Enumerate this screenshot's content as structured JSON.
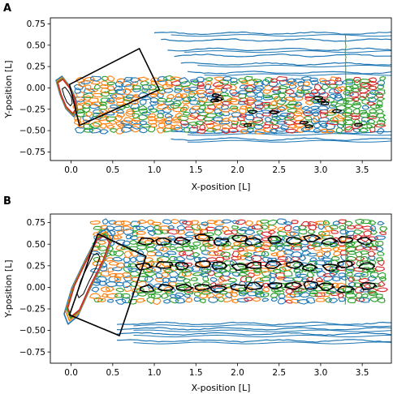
{
  "chart_data": [
    {
      "type": "contour",
      "panel_label": "A",
      "xlabel": "X-position [L]",
      "ylabel": "Y-position [L]",
      "xlim": [
        -0.25,
        3.85
      ],
      "ylim": [
        -0.85,
        0.82
      ],
      "xticks": [
        0.0,
        0.5,
        1.0,
        1.5,
        2.0,
        2.5,
        3.0,
        3.5
      ],
      "yticks": [
        -0.75,
        -0.5,
        -0.25,
        0.0,
        0.25,
        0.5,
        0.75
      ],
      "xtick_labels": [
        "0.0",
        "0.5",
        "1.0",
        "1.5",
        "2.0",
        "2.5",
        "3.0",
        "3.5"
      ],
      "ytick_labels": [
        "−0.75",
        "−0.50",
        "−0.25",
        "0.00",
        "0.25",
        "0.50",
        "0.75"
      ],
      "colors": [
        "#1f77b4",
        "#ff7f0e",
        "#2ca02c",
        "#d62728",
        "#000000"
      ],
      "body_outline": [
        [
          -0.16,
          0.06
        ],
        [
          -0.1,
          0.1
        ],
        [
          -0.02,
          0.0
        ],
        [
          0.04,
          -0.12
        ],
        [
          0.06,
          -0.24
        ],
        [
          0.02,
          -0.3
        ],
        [
          -0.06,
          -0.22
        ],
        [
          -0.12,
          -0.08
        ]
      ],
      "inset_box": [
        [
          -0.02,
          0.04
        ],
        [
          0.82,
          0.46
        ],
        [
          1.06,
          -0.02
        ],
        [
          0.1,
          -0.44
        ]
      ],
      "wake": {
        "x_start": 0.1,
        "x_end": 3.82,
        "y_top": 0.12,
        "y_bottom": -0.52,
        "tip_x": 3.3,
        "streak_y": [
          0.64,
          0.56,
          0.45,
          0.38,
          0.28,
          0.18
        ],
        "lower_streak_y": [
          -0.52,
          -0.6
        ]
      }
    },
    {
      "type": "contour",
      "panel_label": "B",
      "xlabel": "X-position [L]",
      "ylabel": "Y-position [L]",
      "xlim": [
        -0.25,
        3.85
      ],
      "ylim": [
        -0.88,
        0.85
      ],
      "xticks": [
        0.0,
        0.5,
        1.0,
        1.5,
        2.0,
        2.5,
        3.0,
        3.5
      ],
      "yticks": [
        -0.75,
        -0.5,
        -0.25,
        0.0,
        0.25,
        0.5,
        0.75
      ],
      "xtick_labels": [
        "0.0",
        "0.5",
        "1.0",
        "1.5",
        "2.0",
        "2.5",
        "3.0",
        "3.5"
      ],
      "ytick_labels": [
        "−0.75",
        "−0.50",
        "−0.25",
        "0.00",
        "0.25",
        "0.50",
        "0.75"
      ],
      "colors": [
        "#1f77b4",
        "#ff7f0e",
        "#2ca02c",
        "#d62728",
        "#000000"
      ],
      "body_outline": [
        [
          0.4,
          0.6
        ],
        [
          0.32,
          0.56
        ],
        [
          0.18,
          0.3
        ],
        [
          0.04,
          0.02
        ],
        [
          -0.04,
          -0.24
        ],
        [
          0.0,
          -0.34
        ],
        [
          0.1,
          -0.26
        ],
        [
          0.22,
          0.0
        ],
        [
          0.38,
          0.3
        ],
        [
          0.46,
          0.52
        ]
      ],
      "inset_box": [
        [
          0.32,
          0.62
        ],
        [
          0.9,
          0.36
        ],
        [
          0.58,
          -0.56
        ],
        [
          -0.02,
          -0.32
        ]
      ],
      "wake": {
        "x_start": 0.3,
        "x_end": 3.82,
        "y_top": 0.78,
        "y_bottom": -0.18,
        "tip_x": 3.3,
        "streak_y": [
          -0.42,
          -0.48,
          -0.54,
          -0.62
        ],
        "core_y": [
          0.55,
          0.25,
          0.0
        ]
      }
    }
  ]
}
